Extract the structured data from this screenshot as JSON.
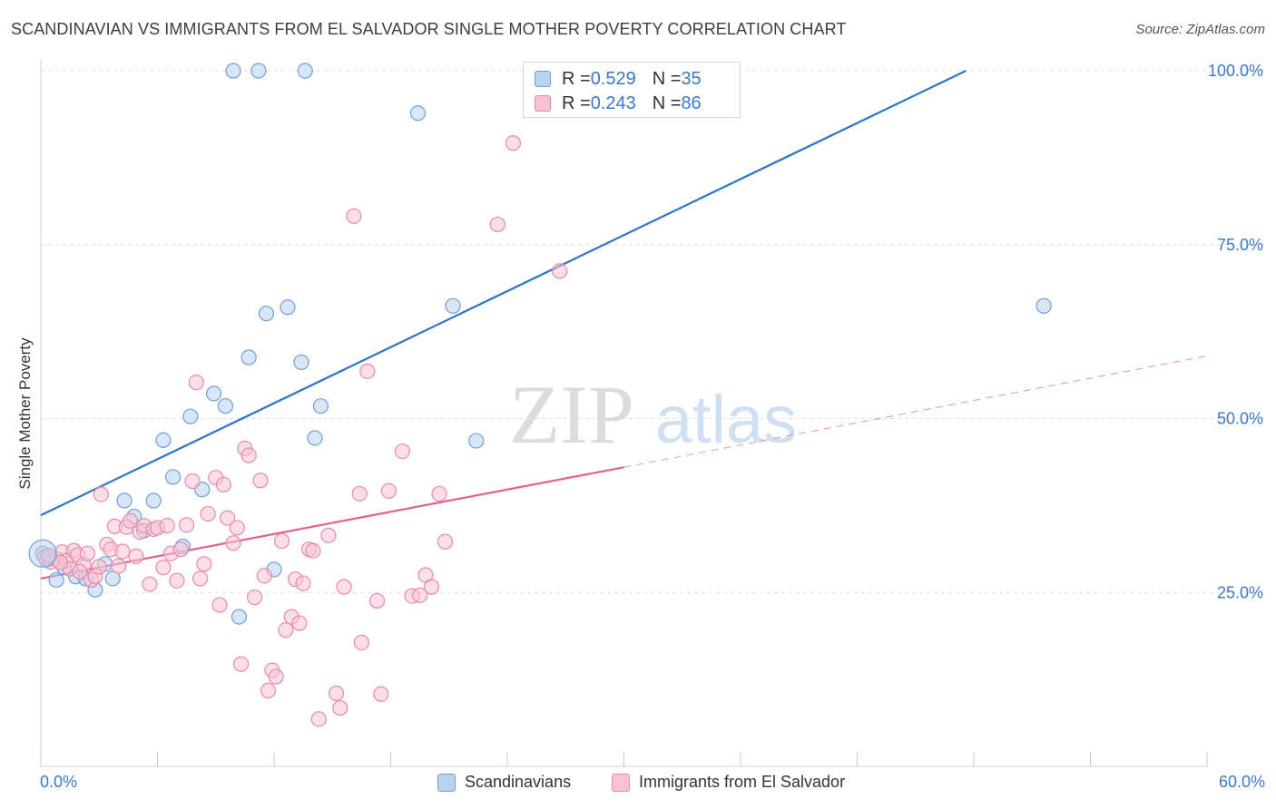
{
  "title": "SCANDINAVIAN VS IMMIGRANTS FROM EL SALVADOR SINGLE MOTHER POVERTY CORRELATION CHART",
  "source": "Source: ZipAtlas.com",
  "watermark": {
    "zip": "ZIP",
    "atlas": "atlas"
  },
  "legend_top": [
    {
      "r_label": "R = ",
      "r_value": "0.529",
      "n_label": "N = ",
      "n_value": "35"
    },
    {
      "r_label": "R = ",
      "r_value": "0.243",
      "n_label": "N = ",
      "n_value": "86"
    }
  ],
  "colors": {
    "blue_fill": "#b8d2f0",
    "blue_stroke": "#6f9fd8",
    "blue_line": "#2e74c9",
    "pink_fill": "#f7c3d3",
    "pink_stroke": "#e88aa8",
    "pink_line": "#e0628e",
    "tick_label": "#3a78c9",
    "grid": "#dddddd"
  },
  "chart_data": {
    "type": "scatter",
    "title": "SCANDINAVIAN VS IMMIGRANTS FROM EL SALVADOR SINGLE MOTHER POVERTY CORRELATION CHART",
    "xlabel": "",
    "ylabel": "Single Mother Poverty",
    "xlim": [
      0,
      60
    ],
    "ylim": [
      0,
      100
    ],
    "x_tick_labels": [
      "0.0%",
      "60.0%"
    ],
    "y_ticks": [
      25,
      50,
      75,
      100
    ],
    "y_tick_labels": [
      "25.0%",
      "50.0%",
      "75.0%",
      "100.0%"
    ],
    "grid": true,
    "legend_position": "bottom",
    "series": [
      {
        "name": "Scandinavians",
        "color": "#6f9fd8",
        "points": [
          [
            0.1,
            30.6
          ],
          [
            0.8,
            26.8
          ],
          [
            1.2,
            28.6
          ],
          [
            1.8,
            27.3
          ],
          [
            2.3,
            27.0
          ],
          [
            2.8,
            25.4
          ],
          [
            3.3,
            29.1
          ],
          [
            3.7,
            27.0
          ],
          [
            4.3,
            38.2
          ],
          [
            4.8,
            35.9
          ],
          [
            5.3,
            33.9
          ],
          [
            5.8,
            38.2
          ],
          [
            6.3,
            46.9
          ],
          [
            6.8,
            41.6
          ],
          [
            7.3,
            31.6
          ],
          [
            7.7,
            50.3
          ],
          [
            8.3,
            39.8
          ],
          [
            8.9,
            53.6
          ],
          [
            9.5,
            51.8
          ],
          [
            9.9,
            100
          ],
          [
            10.2,
            21.5
          ],
          [
            10.7,
            58.8
          ],
          [
            11.2,
            100
          ],
          [
            11.6,
            65.1
          ],
          [
            12.0,
            28.3
          ],
          [
            12.7,
            66.0
          ],
          [
            13.4,
            58.1
          ],
          [
            13.6,
            100
          ],
          [
            14.1,
            47.2
          ],
          [
            14.4,
            51.8
          ],
          [
            19.4,
            93.9
          ],
          [
            21.2,
            66.2
          ],
          [
            22.4,
            46.8
          ],
          [
            51.6,
            66.2
          ],
          [
            0.3,
            29.7
          ]
        ]
      },
      {
        "name": "Immigrants from El Salvador",
        "color": "#e88aa8",
        "points": [
          [
            0.2,
            30.1
          ],
          [
            0.5,
            29.4
          ],
          [
            0.8,
            29.8
          ],
          [
            1.1,
            30.8
          ],
          [
            1.3,
            29.6
          ],
          [
            1.5,
            28.4
          ],
          [
            1.7,
            31.0
          ],
          [
            1.9,
            30.4
          ],
          [
            2.2,
            29.0
          ],
          [
            2.4,
            30.6
          ],
          [
            2.6,
            26.8
          ],
          [
            2.8,
            27.3
          ],
          [
            3.0,
            28.7
          ],
          [
            3.1,
            39.1
          ],
          [
            3.4,
            31.9
          ],
          [
            3.6,
            31.2
          ],
          [
            3.8,
            34.5
          ],
          [
            4.0,
            28.8
          ],
          [
            4.2,
            30.9
          ],
          [
            4.4,
            34.4
          ],
          [
            4.6,
            35.3
          ],
          [
            4.9,
            30.2
          ],
          [
            5.1,
            33.7
          ],
          [
            5.3,
            34.6
          ],
          [
            5.6,
            26.2
          ],
          [
            5.8,
            34.1
          ],
          [
            6.0,
            34.3
          ],
          [
            6.3,
            28.6
          ],
          [
            6.5,
            34.6
          ],
          [
            6.7,
            30.6
          ],
          [
            7.0,
            26.7
          ],
          [
            7.2,
            31.2
          ],
          [
            7.5,
            34.7
          ],
          [
            7.8,
            41.0
          ],
          [
            8.0,
            55.2
          ],
          [
            8.2,
            27.0
          ],
          [
            8.4,
            29.1
          ],
          [
            8.6,
            36.3
          ],
          [
            9.0,
            41.5
          ],
          [
            9.2,
            23.2
          ],
          [
            9.4,
            40.5
          ],
          [
            9.6,
            35.7
          ],
          [
            9.9,
            32.1
          ],
          [
            10.1,
            34.3
          ],
          [
            10.3,
            14.7
          ],
          [
            10.5,
            45.7
          ],
          [
            10.7,
            44.7
          ],
          [
            11.0,
            24.3
          ],
          [
            11.3,
            41.1
          ],
          [
            11.5,
            27.4
          ],
          [
            11.7,
            10.9
          ],
          [
            11.9,
            13.8
          ],
          [
            12.1,
            12.9
          ],
          [
            12.4,
            32.4
          ],
          [
            12.6,
            19.6
          ],
          [
            12.9,
            21.5
          ],
          [
            13.1,
            26.9
          ],
          [
            13.3,
            20.6
          ],
          [
            13.5,
            26.3
          ],
          [
            13.8,
            31.2
          ],
          [
            14.0,
            31.0
          ],
          [
            14.3,
            6.8
          ],
          [
            14.8,
            33.2
          ],
          [
            15.2,
            10.5
          ],
          [
            15.4,
            8.4
          ],
          [
            15.6,
            25.8
          ],
          [
            16.1,
            79.1
          ],
          [
            16.4,
            39.2
          ],
          [
            16.5,
            17.8
          ],
          [
            16.8,
            56.8
          ],
          [
            17.3,
            23.8
          ],
          [
            17.5,
            10.4
          ],
          [
            17.9,
            39.6
          ],
          [
            18.6,
            45.3
          ],
          [
            19.1,
            24.5
          ],
          [
            19.5,
            24.6
          ],
          [
            19.8,
            27.5
          ],
          [
            20.1,
            25.8
          ],
          [
            20.5,
            39.2
          ],
          [
            20.8,
            32.3
          ],
          [
            23.5,
            77.9
          ],
          [
            24.3,
            89.6
          ],
          [
            26.7,
            71.2
          ],
          [
            0.4,
            30.3
          ],
          [
            1.0,
            29.3
          ],
          [
            2.0,
            28.0
          ]
        ]
      }
    ],
    "trend_lines": [
      {
        "series": "Scandinavians",
        "from": [
          0,
          36.1
        ],
        "to": [
          47.6,
          100
        ],
        "style": "solid"
      },
      {
        "series": "Immigrants from El Salvador",
        "from": [
          0,
          27.0
        ],
        "to": [
          30,
          43.0
        ],
        "style": "solid"
      },
      {
        "series": "Immigrants from El Salvador",
        "from": [
          30,
          43.0
        ],
        "to": [
          60,
          59.0
        ],
        "style": "dashed"
      }
    ]
  }
}
